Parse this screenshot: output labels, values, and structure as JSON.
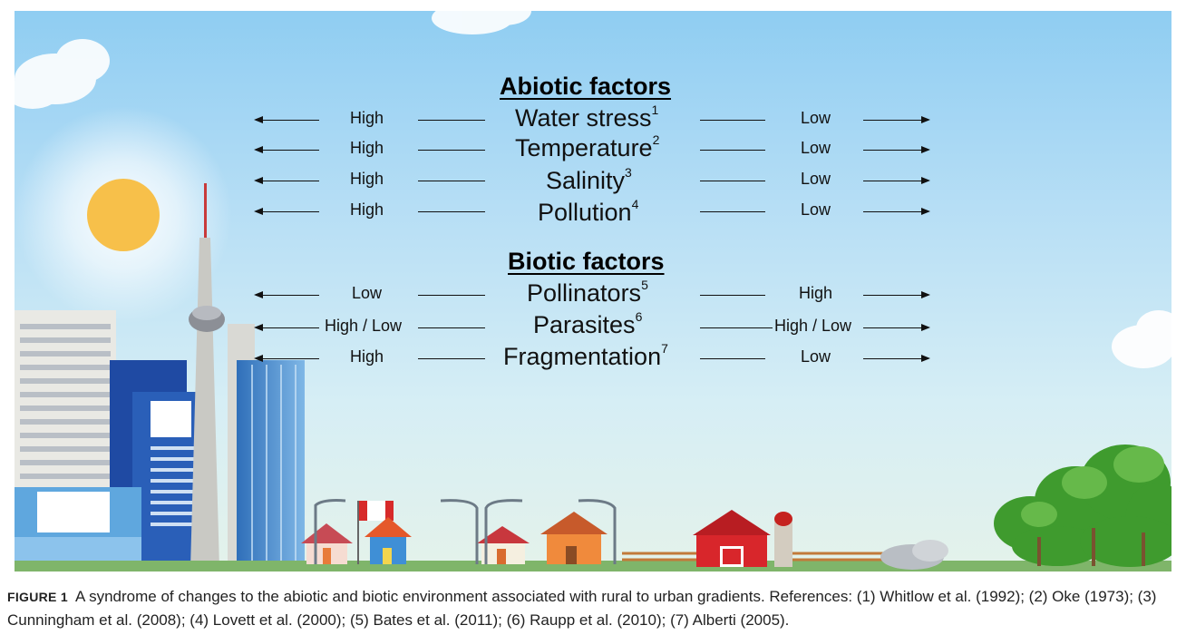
{
  "abiotic": {
    "heading": "Abiotic factors",
    "rows": [
      {
        "left": "High",
        "name": "Water stress",
        "ref": "1",
        "right": "Low"
      },
      {
        "left": "High",
        "name": "Temperature",
        "ref": "2",
        "right": "Low"
      },
      {
        "left": "High",
        "name": "Salinity",
        "ref": "3",
        "right": "Low"
      },
      {
        "left": "High",
        "name": "Pollution",
        "ref": "4",
        "right": "Low"
      }
    ]
  },
  "biotic": {
    "heading": "Biotic factors",
    "rows": [
      {
        "left": "Low",
        "name": "Pollinators",
        "ref": "5",
        "right": "High"
      },
      {
        "left": "High / Low",
        "name": "Parasites",
        "ref": "6",
        "right": "High / Low"
      },
      {
        "left": "High",
        "name": "Fragmentation",
        "ref": "7",
        "right": "Low"
      }
    ]
  },
  "caption": {
    "label": "FIGURE 1",
    "text": "A syndrome of changes to the abiotic and biotic environment associated with rural to urban gradients. References: (1) Whitlow et al. (1992); (2) Oke (1973); (3) Cunningham et al. (2008); (4) Lovett et al. (2000); (5) Bates et al. (2011); (6) Raupp et al. (2010); (7) Alberti (2005)."
  },
  "colors": {
    "sky_top": "#8fcdf2",
    "sun": "#f7c04a",
    "barn": "#d8262b",
    "trees": "#3f9b2e"
  }
}
